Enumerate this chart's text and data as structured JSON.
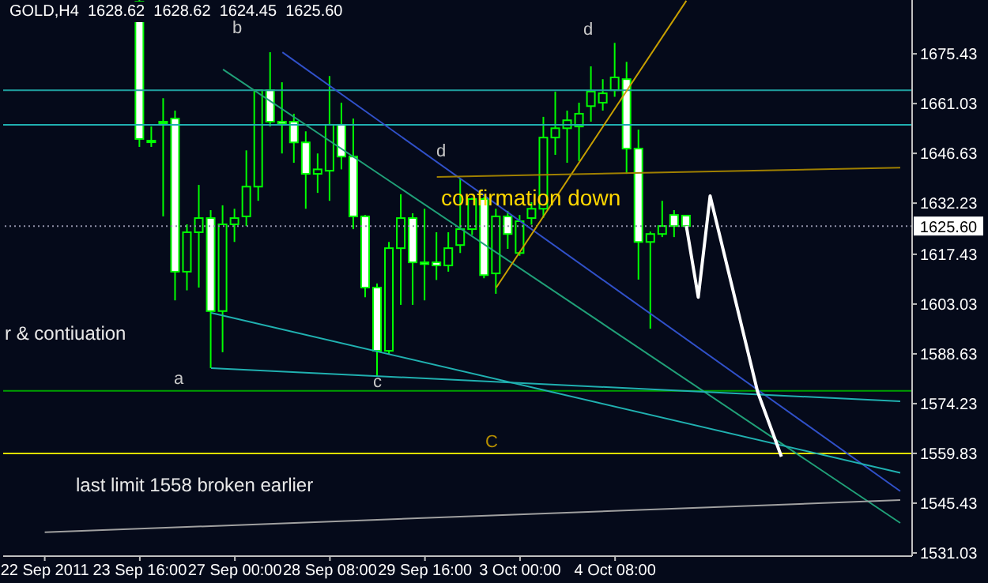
{
  "chart_data": {
    "type": "candlestick",
    "title": "GOLD,H4  1628.62  1628.62  1624.45  1625.60",
    "color": "#00ff00",
    "categories": [
      "22 Sep 2011",
      null,
      null,
      null,
      null,
      null,
      null,
      null,
      "23 Sep 16:00",
      null,
      null,
      null,
      null,
      null,
      null,
      null,
      "27 Sep 00:00",
      null,
      null,
      null,
      null,
      null,
      null,
      null,
      "28 Sep 08:00",
      null,
      null,
      null,
      null,
      null,
      null,
      null,
      "29 Sep 16:00",
      null,
      null,
      null,
      null,
      null,
      null,
      null,
      "3 Oct 00:00",
      null,
      null,
      null,
      null,
      null,
      null,
      null,
      "4 Oct 08:00",
      null,
      null,
      null,
      null,
      null,
      null,
      null,
      null,
      null,
      null,
      null,
      null,
      null,
      null,
      null,
      null,
      null,
      null,
      null,
      null,
      null,
      null,
      null,
      null
    ],
    "ohlc": [
      null,
      null,
      null,
      null,
      null,
      null,
      null,
      null,
      [
        1690.5,
        1691,
        1648.5,
        1650.8
      ],
      [
        1650.3,
        1654.4,
        1648.5,
        1650.3
      ],
      [
        1655.8,
        1662.6,
        1628.4,
        1655.8
      ],
      [
        1656.7,
        1659,
        1604.1,
        1612.4
      ],
      [
        1612.4,
        1626.1,
        1607,
        1623.8
      ],
      [
        1623.8,
        1637.5,
        1607.8,
        1627.9
      ],
      [
        1627.9,
        1630.2,
        1584.5,
        1601
      ],
      [
        1601,
        1631.6,
        1589.1,
        1626.1
      ],
      [
        1626.1,
        1630.6,
        1621,
        1627.9
      ],
      [
        1628.4,
        1647.5,
        1625.6,
        1637
      ],
      [
        1637,
        1664.9,
        1632.9,
        1664.9
      ],
      [
        1664.9,
        1675.9,
        1654.4,
        1655.8
      ],
      [
        1655.8,
        1667.2,
        1646.6,
        1655.2
      ],
      [
        1655.8,
        1658.1,
        1643.9,
        1649.8
      ],
      [
        1649.8,
        1653,
        1630.6,
        1640.7
      ],
      [
        1640.7,
        1646.6,
        1635.2,
        1642
      ],
      [
        1641.6,
        1669,
        1632.9,
        1654.9
      ],
      [
        1654.9,
        1661.3,
        1642,
        1645.7
      ],
      [
        1645.7,
        1656.7,
        1624.7,
        1628.4
      ],
      [
        1628.4,
        1628.8,
        1605,
        1607.8
      ],
      [
        1607.8,
        1609,
        1582.2,
        1589.5
      ],
      [
        1589.5,
        1621,
        1588.6,
        1619.2
      ],
      [
        1619.2,
        1634.8,
        1602.8,
        1627.9
      ],
      [
        1627.9,
        1629.3,
        1602.8,
        1615.1
      ],
      [
        1615.1,
        1630.6,
        1604.1,
        1614.6
      ],
      [
        1615.1,
        1623.8,
        1610,
        1614.2
      ],
      [
        1614.2,
        1623.8,
        1612.4,
        1619.2
      ],
      [
        1620.1,
        1639.3,
        1617.8,
        1624.7
      ],
      [
        1624.7,
        1633.8,
        1623,
        1633.4
      ],
      [
        1633.4,
        1634,
        1610.5,
        1611.4
      ],
      [
        1611.9,
        1630.6,
        1606,
        1628.4
      ],
      [
        1628.4,
        1630,
        1619,
        1623.3
      ],
      [
        1617.8,
        1628.8,
        1617,
        1627
      ],
      [
        1627.9,
        1632.5,
        1626,
        1630.6
      ],
      [
        1630.6,
        1657.2,
        1628,
        1651.2
      ],
      [
        1651.2,
        1664.5,
        1646.2,
        1653.9
      ],
      [
        1653.9,
        1659,
        1643.9,
        1656.2
      ],
      [
        1654.4,
        1661.3,
        1644.4,
        1658.1
      ],
      [
        1660.3,
        1671.8,
        1655.8,
        1664.5
      ],
      [
        1661.3,
        1668.1,
        1659,
        1664
      ],
      [
        1664.9,
        1678.6,
        1663,
        1668.6
      ],
      [
        1668.1,
        1673.1,
        1640.7,
        1648
      ],
      [
        1648,
        1653.5,
        1610.1,
        1621
      ],
      [
        1621,
        1624,
        1595.9,
        1623.3
      ],
      [
        1623.3,
        1632.9,
        1622.4,
        1625.6
      ],
      [
        1628.8,
        1630.2,
        1622.4,
        1625.6
      ],
      [
        1628.62,
        1628.62,
        1624.45,
        1625.6
      ],
      null,
      null,
      null,
      null,
      null,
      null,
      null,
      null,
      null,
      null,
      null,
      null,
      null,
      null,
      null,
      null,
      null,
      null
    ],
    "series": [
      {
        "type": "line",
        "color": "#3050c8",
        "values": [
          null,
          null,
          null,
          null,
          null,
          null,
          null,
          null,
          null,
          null,
          null,
          null,
          null,
          null,
          null,
          null,
          null,
          null,
          null,
          null,
          1675.9,
          null,
          null,
          null,
          null,
          null,
          null,
          null,
          null,
          null,
          null,
          null,
          null,
          null,
          null,
          null,
          null,
          null,
          null,
          null,
          null,
          null,
          null,
          null,
          null,
          null,
          null,
          null,
          null,
          null,
          null,
          null,
          null,
          null,
          null,
          null,
          null,
          null,
          null,
          null,
          null,
          null,
          null,
          null,
          null,
          null,
          null,
          null,
          null,
          null,
          null,
          null,
          1548.9
        ]
      },
      {
        "type": "line",
        "color": "#20a078",
        "values": [
          null,
          null,
          null,
          null,
          null,
          null,
          null,
          null,
          null,
          null,
          null,
          null,
          null,
          null,
          null,
          1670.9,
          null,
          null,
          null,
          null,
          null,
          null,
          null,
          null,
          null,
          null,
          null,
          null,
          null,
          null,
          null,
          null,
          null,
          null,
          null,
          null,
          null,
          null,
          null,
          null,
          null,
          null,
          null,
          null,
          null,
          null,
          null,
          null,
          null,
          null,
          null,
          null,
          null,
          null,
          null,
          null,
          null,
          null,
          null,
          null,
          null,
          null,
          null,
          null,
          null,
          null,
          null,
          null,
          null,
          null,
          null,
          null,
          1539.7
        ]
      },
      {
        "type": "line",
        "color": "#20b0b0",
        "values": [
          null,
          null,
          null,
          null,
          null,
          null,
          null,
          null,
          null,
          null,
          null,
          null,
          null,
          null,
          1600.5,
          null,
          null,
          null,
          null,
          null,
          null,
          null,
          null,
          null,
          null,
          null,
          null,
          null,
          null,
          null,
          null,
          null,
          null,
          null,
          null,
          null,
          null,
          null,
          null,
          null,
          null,
          null,
          null,
          null,
          null,
          null,
          null,
          null,
          null,
          null,
          null,
          null,
          null,
          null,
          null,
          null,
          null,
          null,
          null,
          null,
          null,
          null,
          null,
          null,
          null,
          null,
          null,
          null,
          null,
          null,
          null,
          null,
          1554.2
        ]
      },
      {
        "type": "line",
        "color": "#20b0b0",
        "values": [
          null,
          null,
          null,
          null,
          null,
          null,
          null,
          null,
          null,
          null,
          null,
          null,
          null,
          null,
          1584.5,
          null,
          null,
          null,
          null,
          null,
          null,
          null,
          null,
          null,
          null,
          null,
          null,
          null,
          null,
          null,
          null,
          null,
          null,
          null,
          null,
          null,
          null,
          null,
          null,
          null,
          null,
          null,
          null,
          null,
          null,
          null,
          null,
          null,
          null,
          null,
          null,
          null,
          null,
          null,
          null,
          null,
          null,
          null,
          null,
          null,
          null,
          null,
          null,
          null,
          null,
          null,
          null,
          null,
          null,
          null,
          null,
          null,
          1574.9
        ]
      },
      {
        "type": "line",
        "color": "#c8a000",
        "values": [
          null,
          null,
          null,
          null,
          null,
          null,
          null,
          null,
          null,
          null,
          null,
          null,
          null,
          null,
          null,
          null,
          null,
          null,
          null,
          null,
          null,
          null,
          null,
          null,
          null,
          null,
          null,
          null,
          null,
          null,
          null,
          null,
          null,
          null,
          null,
          null,
          null,
          null,
          1607.8,
          null,
          null,
          null,
          null,
          null,
          null,
          null,
          null,
          null,
          null,
          null,
          null,
          null,
          null,
          null,
          1690.8,
          null,
          null,
          null,
          null,
          null,
          null,
          null,
          null,
          null,
          null,
          null,
          null,
          null,
          null,
          null,
          null,
          null,
          null
        ]
      },
      {
        "type": "line",
        "color": "#a0a0a0",
        "values": [
          1537.0,
          null,
          null,
          null,
          null,
          null,
          null,
          null,
          null,
          null,
          null,
          null,
          null,
          null,
          null,
          null,
          null,
          null,
          null,
          null,
          null,
          null,
          null,
          null,
          null,
          null,
          null,
          null,
          null,
          null,
          null,
          null,
          null,
          null,
          null,
          null,
          null,
          null,
          null,
          null,
          null,
          null,
          null,
          null,
          null,
          null,
          null,
          null,
          null,
          null,
          null,
          null,
          null,
          null,
          null,
          null,
          null,
          null,
          null,
          null,
          null,
          null,
          null,
          null,
          null,
          null,
          null,
          null,
          null,
          null,
          null,
          null,
          1546.3
        ]
      },
      {
        "type": "line",
        "color": "#a08000",
        "values": [
          null,
          null,
          null,
          null,
          null,
          null,
          null,
          null,
          null,
          null,
          null,
          null,
          null,
          null,
          null,
          null,
          null,
          null,
          null,
          null,
          null,
          null,
          null,
          null,
          null,
          null,
          null,
          null,
          null,
          null,
          null,
          null,
          null,
          1639.8,
          null,
          null,
          null,
          null,
          null,
          null,
          null,
          null,
          null,
          null,
          null,
          null,
          null,
          null,
          null,
          null,
          null,
          null,
          null,
          null,
          null,
          null,
          null,
          null,
          null,
          null,
          null,
          null,
          null,
          null,
          null,
          null,
          null,
          null,
          null,
          null,
          null,
          null,
          1642.5
        ]
      },
      {
        "type": "line",
        "color": "#ffffff",
        "values": [
          null,
          null,
          null,
          null,
          null,
          null,
          null,
          null,
          null,
          null,
          null,
          null,
          null,
          null,
          null,
          null,
          null,
          null,
          null,
          null,
          null,
          null,
          null,
          null,
          null,
          null,
          null,
          null,
          null,
          null,
          null,
          null,
          null,
          null,
          null,
          null,
          null,
          null,
          null,
          null,
          null,
          null,
          null,
          null,
          null,
          null,
          null,
          null,
          null,
          null,
          null,
          null,
          null,
          null,
          1625.6,
          1605.0,
          1634.3,
          null,
          null,
          null,
          1577.6,
          null,
          1558.9,
          null,
          null,
          null,
          null,
          null,
          null,
          null,
          null,
          null,
          null
        ]
      }
    ],
    "ylim": [
      1530.1,
      1691.0
    ],
    "yticks": [
      1675.43,
      1661.03,
      1646.63,
      1632.23,
      1617.43,
      1603.03,
      1588.63,
      1574.23,
      1559.83,
      1545.43,
      1531.03
    ],
    "ref_lines": [
      {
        "axis": "y",
        "value": 1664.9,
        "color": "#20a0a0"
      },
      {
        "axis": "y",
        "value": 1654.9,
        "color": "#20b0b0"
      },
      {
        "axis": "y",
        "value": 1625.6,
        "label": "1625.60",
        "color": "#9090a8",
        "line_style": "dotted"
      },
      {
        "axis": "y",
        "value": 1577.9,
        "color": "#00a000"
      },
      {
        "axis": "y",
        "value": 1559.8,
        "color": "#e0e000"
      }
    ],
    "annotations": [
      "b",
      "d",
      "d",
      "confirmation down",
      "r & contiuation",
      "a",
      "c",
      "C",
      "last limit 1558 broken earlier"
    ],
    "marker": "none",
    "line_style": "solid"
  }
}
